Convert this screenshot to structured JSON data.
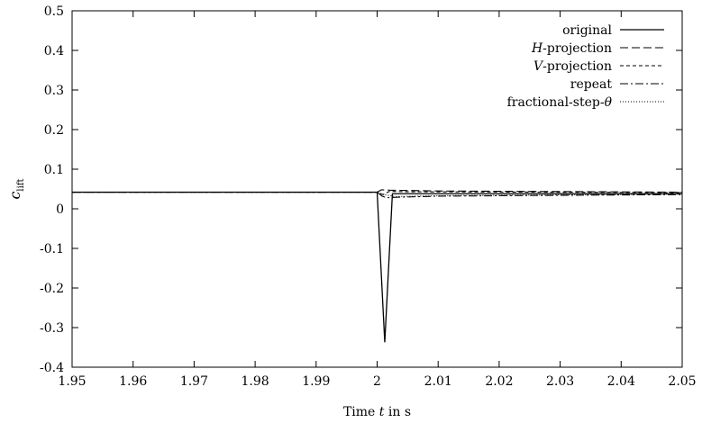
{
  "chart_data": {
    "type": "line",
    "title": "",
    "xlabel_parts": [
      "Time ",
      "t",
      " in s"
    ],
    "ylabel_main": "c",
    "ylabel_sub": "lift",
    "xlim": [
      1.95,
      2.05
    ],
    "ylim": [
      -0.4,
      0.5
    ],
    "x_ticks": [
      "1.95",
      "1.96",
      "1.97",
      "1.98",
      "1.99",
      "2",
      "2.01",
      "2.02",
      "2.03",
      "2.04",
      "2.05"
    ],
    "y_ticks": [
      "-0.4",
      "-0.3",
      "-0.2",
      "-0.1",
      "0",
      "0.1",
      "0.2",
      "0.3",
      "0.4",
      "0.5"
    ],
    "grid": false,
    "legend_position": "top-right",
    "legend_entries": [
      {
        "italic": "",
        "text": "original",
        "dash": ""
      },
      {
        "italic": "H",
        "text": "-projection",
        "dash": "9,4"
      },
      {
        "italic": "V",
        "text": "-projection",
        "dash": "4,3"
      },
      {
        "italic": "",
        "text": "repeat",
        "dash": "9,3,2,3"
      },
      {
        "italic": "",
        "text": "fractional-step-",
        "italic_suffix": "θ",
        "dash": "1,2"
      }
    ],
    "series": [
      {
        "values": [
          [
            1.95,
            0.042
          ],
          [
            2.0,
            0.042
          ],
          [
            2.00125,
            -0.337
          ],
          [
            2.0025,
            0.038
          ],
          [
            2.01,
            0.038
          ],
          [
            2.05,
            0.038
          ]
        ]
      },
      {
        "values": [
          [
            1.95,
            0.042
          ],
          [
            2.0,
            0.042
          ],
          [
            2.0007,
            0.048
          ],
          [
            2.002,
            0.047
          ],
          [
            2.01,
            0.045
          ],
          [
            2.05,
            0.042
          ]
        ]
      },
      {
        "values": [
          [
            1.95,
            0.042
          ],
          [
            2.0,
            0.042
          ],
          [
            2.0005,
            0.038
          ],
          [
            2.001,
            0.036
          ],
          [
            2.002,
            0.044
          ],
          [
            2.005,
            0.043
          ],
          [
            2.05,
            0.041
          ]
        ]
      },
      {
        "values": [
          [
            1.95,
            0.042
          ],
          [
            2.0,
            0.042
          ],
          [
            2.0008,
            0.032
          ],
          [
            2.0015,
            0.028
          ],
          [
            2.003,
            0.029
          ],
          [
            2.01,
            0.032
          ],
          [
            2.05,
            0.036
          ]
        ]
      },
      {
        "values": [
          [
            1.95,
            0.042
          ],
          [
            2.0,
            0.042
          ],
          [
            2.001,
            0.036
          ],
          [
            2.003,
            0.031
          ],
          [
            2.01,
            0.033
          ],
          [
            2.05,
            0.037
          ]
        ]
      }
    ]
  }
}
